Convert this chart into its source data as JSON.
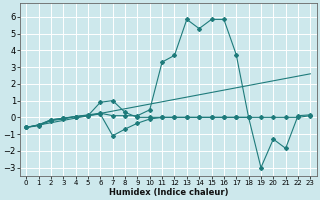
{
  "xlabel": "Humidex (Indice chaleur)",
  "xlim": [
    -0.5,
    23.5
  ],
  "ylim": [
    -3.5,
    6.8
  ],
  "xticks": [
    0,
    1,
    2,
    3,
    4,
    5,
    6,
    7,
    8,
    9,
    10,
    11,
    12,
    13,
    14,
    15,
    16,
    17,
    18,
    19,
    20,
    21,
    22,
    23
  ],
  "yticks": [
    -3,
    -2,
    -1,
    0,
    1,
    2,
    3,
    4,
    5,
    6
  ],
  "bg_color": "#cde8ec",
  "line_color": "#1e7b7b",
  "grid_color": "#ffffff",
  "lines": [
    {
      "x": [
        0,
        1,
        2,
        3,
        4,
        5,
        6,
        7,
        8,
        9,
        10,
        11,
        12,
        13,
        14,
        15,
        16,
        17,
        18
      ],
      "y": [
        -0.6,
        -0.5,
        -0.2,
        -0.1,
        0.05,
        0.15,
        0.25,
        0.1,
        0.1,
        0.1,
        0.45,
        3.3,
        3.7,
        5.85,
        5.3,
        5.85,
        5.85,
        3.75,
        0.0
      ]
    },
    {
      "x": [
        0,
        1,
        2,
        3,
        4,
        5,
        6,
        7,
        8,
        9,
        10,
        11,
        12,
        13,
        14,
        15,
        16,
        17,
        18,
        19,
        20,
        21,
        22,
        23
      ],
      "y": [
        -0.6,
        -0.45,
        -0.15,
        -0.05,
        0.05,
        0.1,
        0.9,
        1.0,
        0.3,
        0.0,
        0.0,
        0.0,
        0.0,
        0.0,
        0.0,
        0.0,
        0.0,
        0.0,
        0.0,
        0.0,
        0.0,
        0.0,
        0.0,
        0.1
      ]
    },
    {
      "x": [
        0,
        1,
        2,
        3,
        4,
        5,
        6,
        7,
        8,
        9,
        10,
        11,
        12,
        13,
        14,
        15,
        16,
        17,
        18,
        19,
        20,
        21,
        22,
        23
      ],
      "y": [
        -0.6,
        -0.45,
        -0.15,
        -0.05,
        0.05,
        0.1,
        0.2,
        -1.1,
        -0.7,
        -0.35,
        -0.1,
        0.0,
        0.0,
        0.0,
        0.0,
        0.0,
        0.0,
        0.0,
        0.0,
        -3.0,
        -1.3,
        -1.85,
        0.1,
        0.15
      ]
    },
    {
      "x": [
        0,
        23
      ],
      "y": [
        -0.6,
        2.6
      ],
      "no_marker": true
    }
  ]
}
